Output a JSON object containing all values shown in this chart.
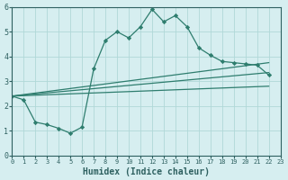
{
  "xlabel": "Humidex (Indice chaleur)",
  "ylabel": "",
  "bg_color": "#d6eef0",
  "grid_color": "#b0d8d8",
  "line_color": "#2e7d6e",
  "xlim": [
    0,
    23
  ],
  "ylim": [
    0,
    6
  ],
  "xticks": [
    0,
    1,
    2,
    3,
    4,
    5,
    6,
    7,
    8,
    9,
    10,
    11,
    12,
    13,
    14,
    15,
    16,
    17,
    18,
    19,
    20,
    21,
    22,
    23
  ],
  "yticks": [
    0,
    1,
    2,
    3,
    4,
    5,
    6
  ],
  "line1_x": [
    0,
    1,
    2,
    3,
    4,
    5,
    6,
    7,
    8,
    9,
    10,
    11,
    12,
    13,
    14,
    15,
    16,
    17,
    18,
    19,
    20,
    21,
    22
  ],
  "line1_y": [
    2.4,
    2.25,
    1.35,
    1.25,
    1.1,
    0.9,
    1.15,
    3.5,
    4.65,
    5.0,
    4.75,
    5.2,
    5.9,
    5.4,
    5.65,
    5.2,
    4.35,
    4.05,
    3.8,
    3.75,
    3.7,
    3.65,
    3.25
  ],
  "line2_x": [
    0,
    22
  ],
  "line2_y": [
    2.4,
    3.35
  ],
  "line3_x": [
    0,
    22
  ],
  "line3_y": [
    2.4,
    3.75
  ],
  "line4_x": [
    0,
    22
  ],
  "line4_y": [
    2.4,
    2.8
  ]
}
